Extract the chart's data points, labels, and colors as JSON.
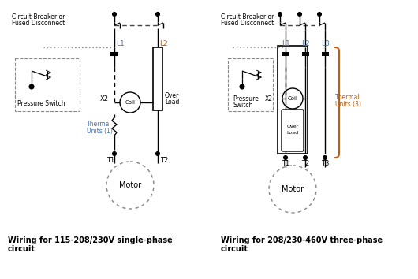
{
  "background_color": "#ffffff",
  "line_color": "#000000",
  "dashed_color": "#444444",
  "blue_label_color": "#4472c4",
  "orange_label_color": "#c55a11",
  "title1_line1": "Wiring for 115-208/230V single-phase",
  "title1_line2": "circuit",
  "title2_line1": "Wiring for 208/230-460V three-phase",
  "title2_line2": "circuit"
}
